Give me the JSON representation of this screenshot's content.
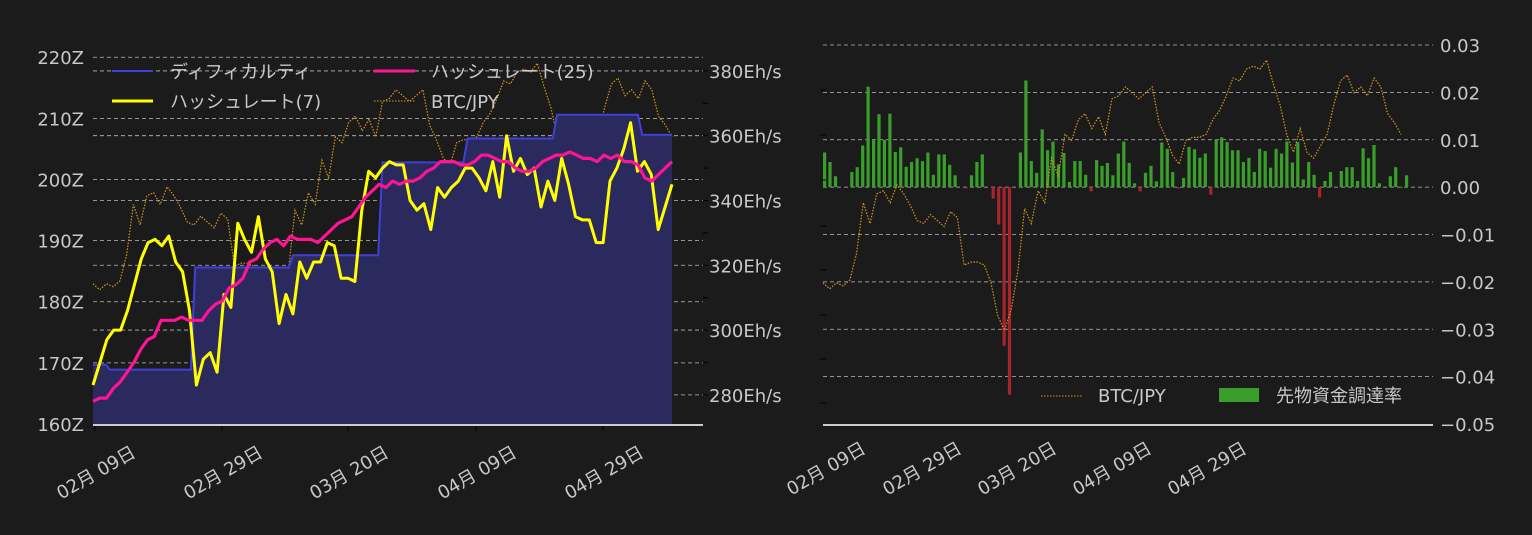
{
  "colors": {
    "background": "#1b1b1b",
    "difficulty_line": "#4040d8",
    "difficulty_fill": "#2b2a5e",
    "hashrate7": "#ffff00",
    "hashrate25": "#ff1493",
    "btcjpy": "#d4961c",
    "funding_pos": "#3a9e2a",
    "funding_neg": "#a8232b",
    "grid": "#bbbbbb",
    "text": "#c8c8c8"
  },
  "chart_data": [
    {
      "type": "line",
      "title": "",
      "xlabel": "",
      "ylabel_left": "",
      "ylabel_right": "",
      "x_tick_labels": [
        "02月 09日",
        "02月 29日",
        "03月 20日",
        "04月 09日",
        "04月 29日"
      ],
      "y_left_ticks": [
        "160Z",
        "170Z",
        "180Z",
        "190Z",
        "200Z",
        "210Z",
        "220Z"
      ],
      "y_left_range": [
        160,
        222
      ],
      "y_right_ticks": [
        "280Eh/s",
        "300Eh/s",
        "320Eh/s",
        "340Eh/s",
        "360Eh/s",
        "380Eh/s"
      ],
      "y_right_range": [
        271,
        388
      ],
      "legend": [
        "ディフィカルティ",
        "ハッシュレート(25)",
        "ハッシュレート(7)",
        "BTC/JPY"
      ],
      "legend_position": "upper left",
      "grid": true,
      "series": [
        {
          "name": "ディフィカルティ",
          "axis": "left",
          "style": "area-step",
          "values": [
            169.7,
            169.7,
            169.7,
            169.7,
            168.9,
            168.9,
            168.9,
            168.9,
            168.9,
            168.9,
            168.9,
            168.9,
            168.9,
            168.9,
            168.9,
            168.9,
            168.9,
            168.9,
            168.9,
            168.9,
            168.9,
            168.9,
            168.9,
            168.9,
            185.6,
            185.6,
            185.6,
            185.6,
            185.6,
            185.6,
            185.6,
            185.6,
            185.6,
            185.6,
            185.6,
            185.6,
            185.6,
            185.6,
            185.6,
            185.6,
            185.6,
            185.6,
            185.6,
            185.6,
            185.6,
            185.6,
            185.6,
            187.6,
            187.6,
            187.6,
            187.6,
            187.6,
            187.6,
            187.6,
            187.6,
            187.6,
            187.6,
            187.6,
            187.6,
            187.6,
            187.6,
            187.6,
            187.6,
            187.6,
            187.6,
            187.6,
            187.6,
            187.6,
            202.8,
            202.8,
            202.8,
            202.8,
            202.8,
            202.8,
            202.8,
            202.8,
            202.8,
            202.8,
            202.8,
            202.8,
            202.8,
            202.8,
            202.8,
            202.8,
            202.8,
            202.8,
            202.8,
            202.8,
            206.7,
            206.7,
            206.7,
            206.7,
            206.7,
            206.7,
            206.7,
            206.7,
            206.7,
            206.7,
            206.7,
            206.7,
            206.7,
            206.7,
            206.7,
            206.7,
            206.7,
            206.7,
            206.7,
            206.7,
            206.7,
            210.6,
            210.6,
            210.6,
            210.6,
            210.6,
            210.6,
            210.6,
            210.6,
            210.6,
            210.6,
            210.6,
            210.6,
            210.6,
            210.6,
            210.6,
            210.6,
            210.6,
            210.6,
            210.6,
            210.6,
            207.3,
            207.3,
            207.3,
            207.3,
            207.3,
            207.3,
            207.3,
            207.3
          ]
        },
        {
          "name": "ハッシュレート(7)",
          "axis": "right",
          "values": [
            283,
            290,
            297,
            300,
            300,
            306,
            314,
            322,
            327,
            328,
            326,
            329,
            321,
            318,
            306,
            283,
            291,
            293,
            287,
            311,
            307,
            333,
            328,
            324,
            335,
            322,
            318,
            302,
            311,
            305,
            321,
            316,
            321,
            321,
            327,
            326,
            316,
            316,
            315,
            337,
            349,
            347,
            350,
            352,
            351,
            351,
            340,
            337,
            339,
            331,
            344,
            341,
            344,
            346,
            350,
            350,
            347,
            343,
            352,
            341,
            360,
            349,
            353,
            348,
            350,
            338,
            346,
            340,
            353,
            345,
            335,
            334,
            334,
            327,
            327,
            346,
            350,
            356,
            364,
            349,
            352,
            348,
            331,
            338,
            345
          ]
        },
        {
          "name": "ハッシュレート(25)",
          "axis": "right",
          "values": [
            278,
            279,
            279,
            282,
            284,
            287,
            290,
            294,
            297,
            298,
            303,
            303,
            303,
            304,
            303,
            303,
            303,
            306,
            308,
            309,
            313,
            314,
            316,
            321,
            322,
            325,
            327,
            328,
            326,
            329,
            328,
            328,
            328,
            327,
            329,
            331,
            333,
            334,
            335,
            338,
            341,
            343,
            345,
            344,
            346,
            345,
            346,
            346,
            347,
            349,
            350,
            352,
            352,
            352,
            351,
            351,
            352,
            354,
            354,
            353,
            352,
            352,
            350,
            349,
            349,
            350,
            352,
            353,
            354,
            354,
            355,
            354,
            353,
            353,
            352,
            354,
            353,
            354,
            352,
            352,
            351,
            347,
            346,
            348,
            350,
            352
          ]
        },
        {
          "name": "BTC/JPY",
          "axis": "hidden",
          "style": "dotted",
          "values": [
            0.3,
            0.28,
            0.3,
            0.29,
            0.31,
            0.4,
            0.57,
            0.5,
            0.6,
            0.61,
            0.57,
            0.63,
            0.6,
            0.56,
            0.51,
            0.5,
            0.53,
            0.51,
            0.49,
            0.54,
            0.52,
            0.36,
            0.37,
            0.37,
            0.36,
            0.3,
            0.19,
            0.14,
            0.21,
            0.34,
            0.55,
            0.5,
            0.61,
            0.57,
            0.72,
            0.66,
            0.8,
            0.78,
            0.85,
            0.87,
            0.82,
            0.86,
            0.8,
            0.92,
            0.93,
            0.96,
            0.94,
            0.92,
            0.94,
            0.96,
            0.84,
            0.79,
            0.73,
            0.7,
            0.78,
            0.79,
            0.79,
            0.8,
            0.85,
            0.88,
            0.93,
            0.99,
            0.98,
            1.02,
            1.03,
            1.02,
            1.05,
            0.97,
            0.9,
            0.8,
            0.74,
            0.82,
            0.74,
            0.72,
            0.76,
            0.8,
            0.9,
            0.98,
            1.0,
            0.94,
            0.96,
            0.93,
            0.99,
            0.96,
            0.87,
            0.84,
            0.8
          ]
        }
      ]
    },
    {
      "type": "bar",
      "title": "",
      "xlabel": "",
      "ylabel": "",
      "x_tick_labels": [
        "02月 09日",
        "02月 29日",
        "03月 20日",
        "04月 09日",
        "04月 29日"
      ],
      "y_ticks": [
        "−0.05",
        "−0.04",
        "−0.03",
        "−0.02",
        "−0.01",
        "0.00",
        "0.01",
        "0.02",
        "0.03"
      ],
      "ylim": [
        -0.05,
        0.03
      ],
      "legend": [
        "BTC/JPY",
        "先物資金調達率"
      ],
      "legend_position": "lower right",
      "grid": true,
      "series": [
        {
          "name": "先物資金調達率",
          "values": [
            0.0073,
            0.0053,
            0.0023,
            0,
            0,
            0.0032,
            0.0042,
            0.0088,
            0.0212,
            0.0099,
            0.0154,
            0.01,
            0.0155,
            0.0074,
            0.0084,
            0.0043,
            0.0053,
            0.0061,
            0.0055,
            0.0073,
            0.0026,
            0.0069,
            0.0069,
            0.0047,
            0.0025,
            0,
            -0.0003,
            0.0025,
            0.0053,
            0.0069,
            0,
            -0.0024,
            -0.0079,
            -0.0335,
            -0.0438,
            0,
            0.0073,
            0.0225,
            0.0055,
            0.003,
            0.0122,
            0.0078,
            0.0096,
            0.0048,
            0.0072,
            0.0011,
            0.0055,
            0.0055,
            0.0026,
            -0.0009,
            0.0057,
            0.0045,
            0.0051,
            0.0025,
            0.0071,
            0.0096,
            0.0051,
            0.0008,
            -0.0009,
            0.003,
            0.0045,
            0.0012,
            0.0094,
            0.0081,
            0.0032,
            -0.0003,
            0.0019,
            0.0085,
            0.008,
            0.0062,
            0.0071,
            -0.0016,
            0.01,
            0.0105,
            0.0095,
            0.0078,
            0.0078,
            0.0053,
            0.0062,
            0.0032,
            0.0081,
            0.0076,
            0.0041,
            0.0081,
            0.0071,
            0.0096,
            0.0052,
            0.0095,
            0.0016,
            0.0053,
            0.0026,
            -0.0022,
            0.0013,
            0.0032,
            0,
            0.0034,
            0.0042,
            0.0042,
            0.0013,
            0.0082,
            0.0061,
            0.0089,
            0.0008,
            0,
            0.0023,
            0.0042,
            0.0001,
            0.0025
          ]
        },
        {
          "name": "BTC/JPY",
          "style": "dotted",
          "values": [
            0.3,
            0.28,
            0.3,
            0.29,
            0.31,
            0.4,
            0.57,
            0.5,
            0.6,
            0.61,
            0.57,
            0.63,
            0.6,
            0.56,
            0.51,
            0.5,
            0.53,
            0.51,
            0.49,
            0.54,
            0.52,
            0.36,
            0.37,
            0.37,
            0.36,
            0.3,
            0.19,
            0.14,
            0.21,
            0.34,
            0.55,
            0.5,
            0.61,
            0.57,
            0.72,
            0.66,
            0.8,
            0.78,
            0.85,
            0.87,
            0.82,
            0.86,
            0.8,
            0.92,
            0.93,
            0.96,
            0.94,
            0.92,
            0.94,
            0.96,
            0.84,
            0.79,
            0.73,
            0.7,
            0.78,
            0.79,
            0.79,
            0.8,
            0.85,
            0.88,
            0.93,
            0.99,
            0.98,
            1.02,
            1.03,
            1.02,
            1.05,
            0.97,
            0.9,
            0.8,
            0.74,
            0.82,
            0.74,
            0.72,
            0.76,
            0.8,
            0.9,
            0.98,
            1.0,
            0.94,
            0.96,
            0.93,
            0.99,
            0.96,
            0.87,
            0.84,
            0.8
          ]
        }
      ]
    }
  ]
}
